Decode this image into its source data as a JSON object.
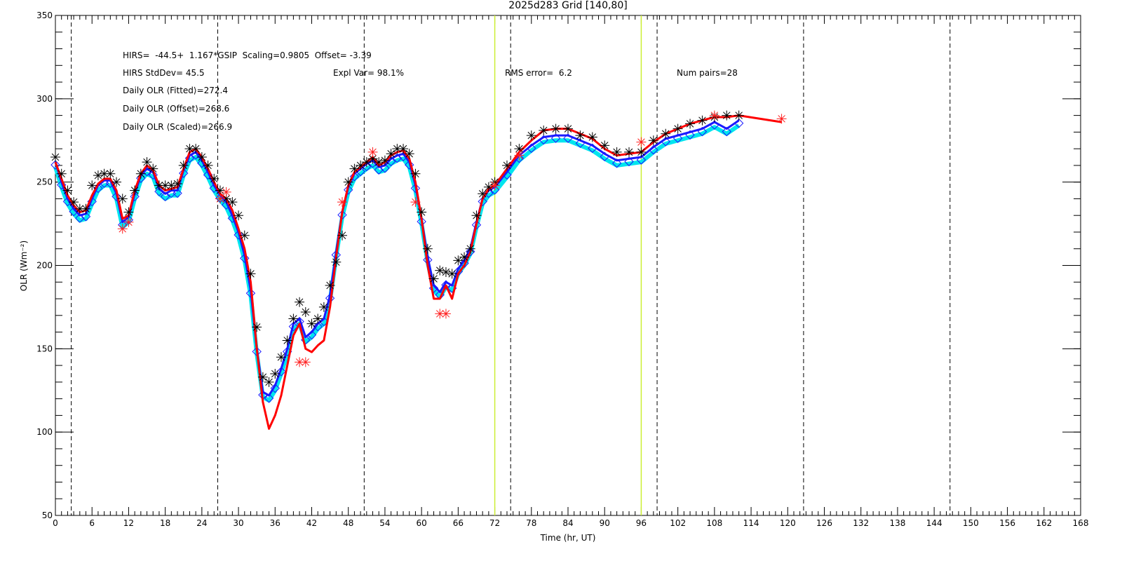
{
  "chart_data": {
    "type": "line",
    "title": "2025d283 Grid [140,80]",
    "xlabel": "Time (hr, UT)",
    "ylabel": "OLR (Wm⁻²)",
    "annotations": [
      "HIRS=  -44.5+  1.167*GSIP  Scaling=0.9805  Offset= -3.39",
      "HIRS StdDev= 45.5",
      "Expl Var= 98.1%",
      "RMS error=  6.2",
      "Num pairs=28",
      "Daily OLR ⟨Fitted⟩=272.4",
      "Daily OLR ⟨Offset⟩=268.6",
      "Daily OLR ⟨Scaled⟩=266.9"
    ],
    "xlim": [
      0,
      168
    ],
    "ylim": [
      50,
      350
    ],
    "xticks": [
      0,
      6,
      12,
      18,
      24,
      30,
      36,
      42,
      48,
      54,
      60,
      66,
      72,
      78,
      84,
      90,
      96,
      102,
      108,
      114,
      120,
      126,
      132,
      138,
      144,
      150,
      156,
      162,
      168
    ],
    "yticks": [
      50,
      100,
      150,
      200,
      250,
      300,
      350
    ],
    "y_minor_step": 10,
    "dashed_vlines": [
      2.6,
      26.6,
      50.6,
      74.6,
      98.6,
      122.6,
      146.6
    ],
    "solid_vlines": [
      72,
      96
    ],
    "solid_vline_color": "#ccee33",
    "x": [
      0,
      1,
      2,
      3,
      4,
      5,
      6,
      7,
      8,
      9,
      10,
      11,
      12,
      13,
      14,
      15,
      16,
      17,
      18,
      19,
      20,
      21,
      22,
      23,
      24,
      25,
      26,
      27,
      28,
      29,
      30,
      31,
      32,
      33,
      34,
      35,
      36,
      37,
      38,
      39,
      40,
      41,
      42,
      43,
      44,
      45,
      46,
      47,
      48,
      49,
      50,
      51,
      52,
      53,
      54,
      55,
      56,
      57,
      58,
      59,
      60,
      61,
      62,
      63,
      64,
      65,
      66,
      67,
      68,
      69,
      70,
      71,
      72,
      74,
      76,
      78,
      80,
      82,
      84,
      86,
      88,
      90,
      92,
      94,
      96,
      98,
      100,
      102,
      104,
      106,
      108,
      110,
      112,
      119
    ],
    "series": [
      {
        "color": "#00e5ee",
        "style": "line",
        "width": 6,
        "values": [
          259,
          247,
          237,
          231,
          227,
          228,
          237,
          245,
          248,
          248,
          240,
          223,
          226,
          240,
          251,
          255,
          253,
          243,
          240,
          242,
          242,
          254,
          263,
          265,
          260,
          253,
          245,
          239,
          235,
          227,
          217,
          203,
          182,
          147,
          121,
          119,
          125,
          135,
          147,
          162,
          165,
          154,
          157,
          162,
          165,
          179,
          205,
          229,
          244,
          252,
          255,
          258,
          260,
          256,
          257,
          261,
          263,
          264,
          259,
          245,
          225,
          202,
          185,
          181,
          187,
          185,
          195,
          200,
          207,
          223,
          237,
          242,
          244,
          253,
          263,
          269,
          274,
          275,
          275,
          272,
          269,
          264,
          260,
          261,
          262,
          268,
          273,
          275,
          277,
          279,
          283,
          279,
          284,
          null
        ]
      },
      {
        "color": "#1a1aff",
        "style": "line-diamond",
        "width": 3,
        "values": [
          262,
          250,
          240,
          234,
          230,
          231,
          240,
          248,
          251,
          251,
          243,
          226,
          229,
          243,
          254,
          258,
          256,
          246,
          243,
          245,
          245,
          257,
          266,
          268,
          263,
          256,
          248,
          242,
          238,
          230,
          220,
          206,
          185,
          150,
          124,
          122,
          128,
          138,
          150,
          165,
          168,
          157,
          160,
          165,
          168,
          182,
          208,
          232,
          247,
          255,
          258,
          261,
          263,
          259,
          260,
          264,
          266,
          267,
          262,
          248,
          228,
          205,
          188,
          184,
          190,
          188,
          198,
          203,
          210,
          226,
          240,
          245,
          247,
          256,
          266,
          272,
          277,
          278,
          278,
          275,
          272,
          267,
          263,
          264,
          265,
          271,
          276,
          278,
          280,
          282,
          286,
          282,
          287,
          null
        ]
      },
      {
        "color": "#ff0000",
        "style": "line",
        "width": 3,
        "values": [
          262,
          252,
          242,
          236,
          232,
          233,
          242,
          249,
          252,
          252,
          245,
          228,
          230,
          245,
          255,
          260,
          257,
          248,
          245,
          246,
          247,
          258,
          268,
          270,
          265,
          258,
          250,
          243,
          240,
          233,
          222,
          210,
          190,
          150,
          118,
          102,
          110,
          122,
          140,
          158,
          165,
          150,
          148,
          152,
          155,
          175,
          205,
          232,
          248,
          256,
          259,
          262,
          265,
          260,
          262,
          266,
          268,
          269,
          264,
          250,
          228,
          200,
          180,
          180,
          188,
          180,
          195,
          200,
          208,
          225,
          240,
          246,
          248,
          258,
          268,
          275,
          281,
          282,
          282,
          279,
          276,
          270,
          266,
          267,
          268,
          274,
          279,
          282,
          285,
          287,
          289,
          289,
          290,
          286
        ]
      },
      {
        "color": "#000000",
        "style": "star",
        "values": [
          265,
          255,
          245,
          238,
          234,
          234,
          248,
          254,
          255,
          255,
          250,
          240,
          232,
          245,
          255,
          262,
          258,
          248,
          248,
          248,
          249,
          260,
          270,
          270,
          265,
          260,
          252,
          245,
          240,
          238,
          230,
          218,
          195,
          163,
          133,
          130,
          135,
          145,
          155,
          168,
          178,
          172,
          165,
          168,
          175,
          188,
          202,
          218,
          250,
          258,
          260,
          262,
          264,
          262,
          263,
          267,
          270,
          270,
          267,
          255,
          232,
          210,
          192,
          197,
          196,
          195,
          203,
          205,
          210,
          230,
          243,
          247,
          250,
          260,
          270,
          278,
          281,
          282,
          282,
          278,
          277,
          272,
          268,
          268,
          268,
          275,
          279,
          282,
          285,
          287,
          289,
          290,
          290,
          null
        ]
      }
    ],
    "points": {
      "color": "#ff2020",
      "style": "star",
      "x": [
        11,
        12,
        27,
        28,
        40,
        41,
        47,
        52,
        59,
        63,
        64,
        72,
        76,
        96,
        108,
        119
      ],
      "values": [
        222,
        226,
        240,
        244,
        142,
        142,
        238,
        268,
        238,
        171,
        171,
        248,
        266,
        274,
        290,
        288
      ]
    }
  }
}
